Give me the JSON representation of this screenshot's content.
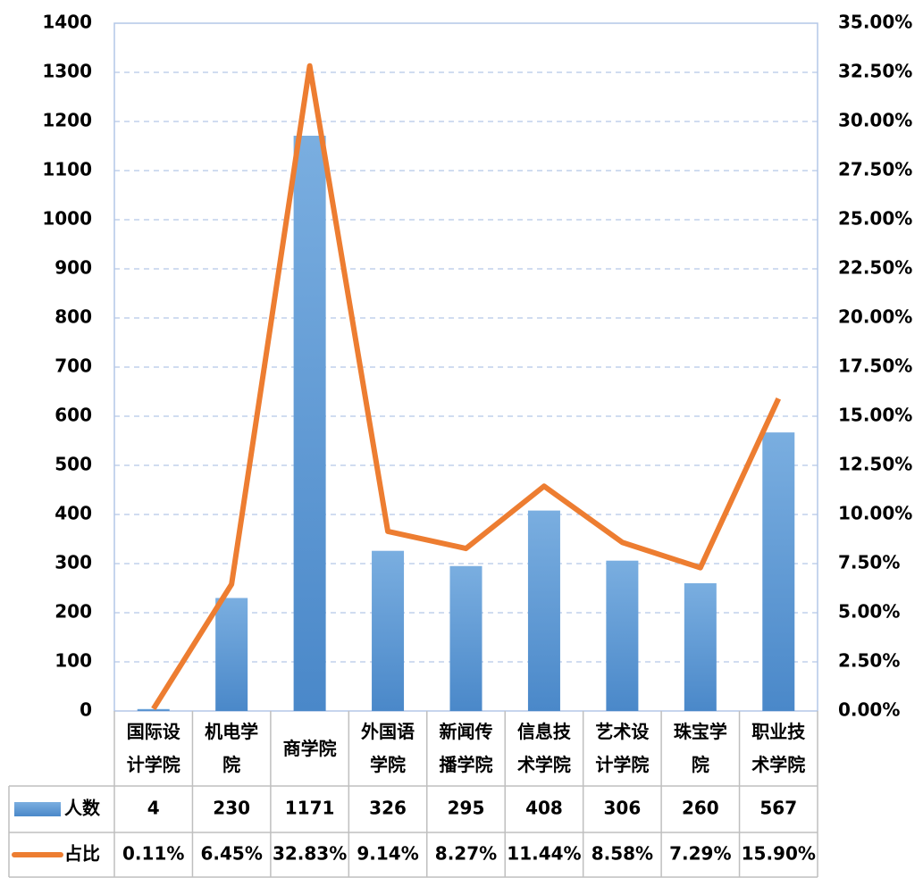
{
  "chart_data": {
    "type": "bar",
    "categories": [
      "国际设计学院",
      "机电学院",
      "商学院",
      "外国语学院",
      "新闻传播学院",
      "信息技术学院",
      "艺术设计学院",
      "珠宝学院",
      "职业技术学院"
    ],
    "series": [
      {
        "name": "人数",
        "type": "bar",
        "color": "#5b9bd5",
        "values": [
          4,
          230,
          1171,
          326,
          295,
          408,
          306,
          260,
          567
        ]
      },
      {
        "name": "占比",
        "type": "line",
        "axis": "y2",
        "color": "#ed7d31",
        "values": [
          0.11,
          6.45,
          32.83,
          9.14,
          8.27,
          11.44,
          8.58,
          7.29,
          15.9
        ],
        "value_labels": [
          "0.11%",
          "6.45%",
          "32.83%",
          "9.14%",
          "8.27%",
          "11.44%",
          "8.58%",
          "7.29%",
          "15.90%"
        ]
      }
    ],
    "ylim": [
      0,
      1400
    ],
    "yticks": [
      0,
      100,
      200,
      300,
      400,
      500,
      600,
      700,
      800,
      900,
      1000,
      1100,
      1200,
      1300,
      1400
    ],
    "y2lim": [
      0,
      35
    ],
    "y2ticks": [
      {
        "value": 0,
        "label": "0.00%"
      },
      {
        "value": 2.5,
        "label": "2.50%"
      },
      {
        "value": 5,
        "label": "5.00%"
      },
      {
        "value": 7.5,
        "label": "7.50%"
      },
      {
        "value": 10,
        "label": "10.00%"
      },
      {
        "value": 12.5,
        "label": "12.50%"
      },
      {
        "value": 15,
        "label": "15.00%"
      },
      {
        "value": 17.5,
        "label": "17.50%"
      },
      {
        "value": 20,
        "label": "20.00%"
      },
      {
        "value": 22.5,
        "label": "22.50%"
      },
      {
        "value": 25,
        "label": "25.00%"
      },
      {
        "value": 27.5,
        "label": "27.50%"
      },
      {
        "value": 30,
        "label": "30.00%"
      },
      {
        "value": 32.5,
        "label": "32.50%"
      },
      {
        "value": 35,
        "label": "35.00%"
      }
    ],
    "grid": true,
    "data_table": true
  }
}
